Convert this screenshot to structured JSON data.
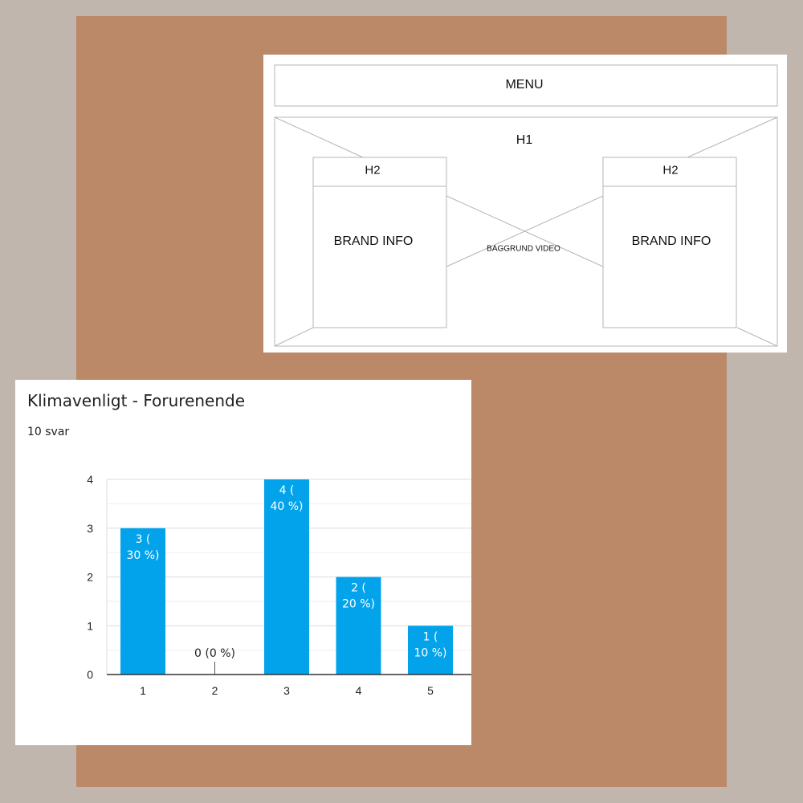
{
  "wireframe": {
    "menu_label": "MENU",
    "h1_label": "H1",
    "left_box": {
      "heading": "H2",
      "body": "BRAND INFO"
    },
    "right_box": {
      "heading": "H2",
      "body": "BRAND INFO"
    },
    "center_label": "BAGGRUND VIDEO"
  },
  "chart": {
    "title": "Klimavenligt - Forurenende",
    "subtitle": "10 svar"
  },
  "chart_data": {
    "type": "bar",
    "categories": [
      "1",
      "2",
      "3",
      "4",
      "5"
    ],
    "values": [
      3,
      0,
      4,
      2,
      1
    ],
    "data_labels": [
      [
        "3 (",
        "30 %)"
      ],
      [
        "0 (0 %)"
      ],
      [
        "4 (",
        "40 %)"
      ],
      [
        "2 (",
        "20 %)"
      ],
      [
        "1 (",
        "10 %)"
      ]
    ],
    "ylim": [
      0,
      4
    ],
    "yticks": [
      "0",
      "1",
      "2",
      "3",
      "4"
    ],
    "title": "Klimavenligt - Forurenende",
    "xlabel": "",
    "ylabel": "",
    "grid": true,
    "bar_color": "#03a3ec"
  },
  "colors": {
    "background": "#c0b6ad",
    "panel": "#bb8868",
    "bar": "#03a3ec"
  }
}
